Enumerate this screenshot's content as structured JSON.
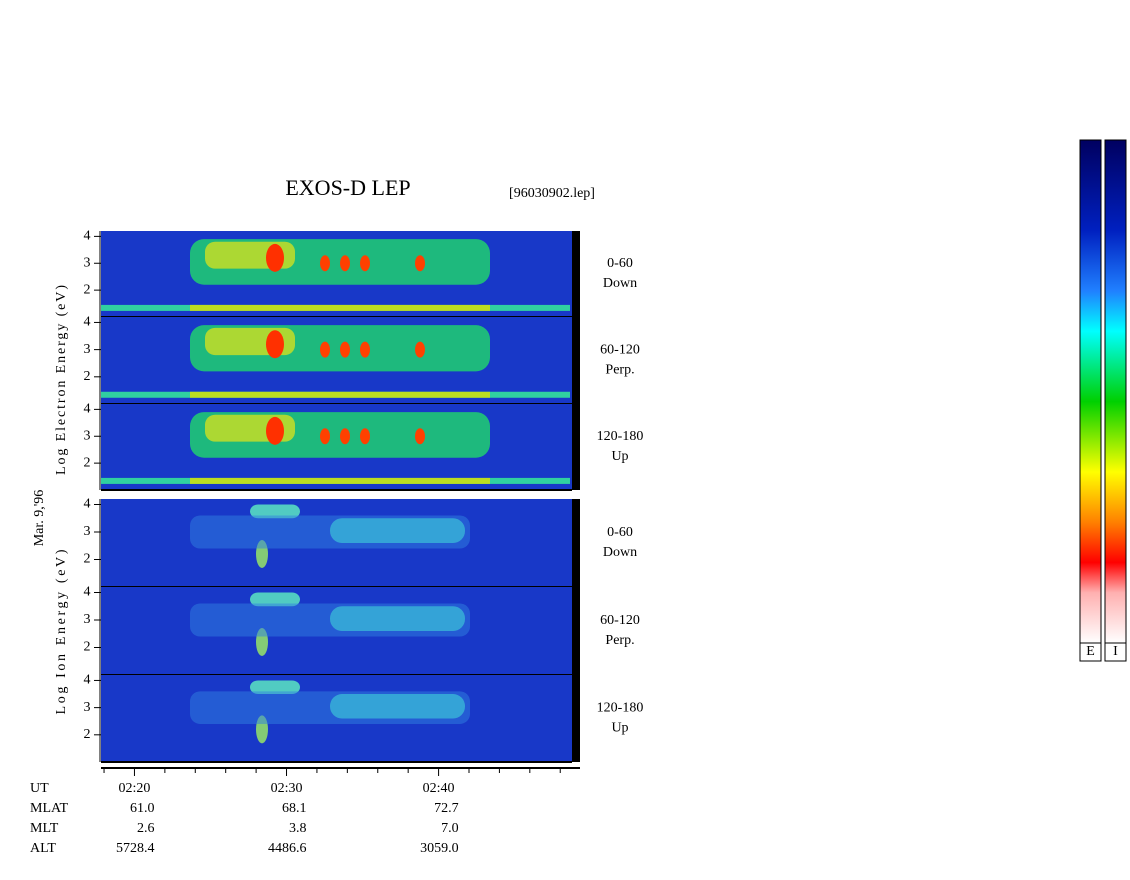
{
  "chart_data": {
    "type": "spectrogram",
    "title": "EXOS-D LEP",
    "subtitle": "[96030902.lep]",
    "date_label": "Mar. 9,'96",
    "electron_ylabel": "Log  Electron  Energy (eV)",
    "ion_ylabel": "Log  Ion  Energy (eV)",
    "ylim": [
      1,
      4.2
    ],
    "yticks": [
      2,
      3,
      4
    ],
    "xlim": [
      137.8,
      169.3
    ],
    "xticks": [
      {
        "value": 140,
        "label": "02:20"
      },
      {
        "value": 150,
        "label": "02:30"
      },
      {
        "value": 160,
        "label": "02:40"
      }
    ],
    "xticks_minor": [
      138,
      142,
      144,
      146,
      148,
      152,
      154,
      156,
      158,
      162,
      164,
      166,
      168
    ],
    "panels": [
      {
        "species": "electron",
        "label": [
          "0-60",
          "Down"
        ]
      },
      {
        "species": "electron",
        "label": [
          "60-120",
          "Perp."
        ]
      },
      {
        "species": "electron",
        "label": [
          "120-180",
          "Up"
        ]
      },
      {
        "species": "ion",
        "label": [
          "0-60",
          "Down"
        ]
      },
      {
        "species": "ion",
        "label": [
          "60-120",
          "Perp."
        ]
      },
      {
        "species": "ion",
        "label": [
          "120-180",
          "Up"
        ]
      }
    ],
    "orbit": {
      "time_label": "UT",
      "rows": [
        {
          "name": "MLAT",
          "values": [
            "61.0",
            "68.1",
            "72.7"
          ]
        },
        {
          "name": "MLT",
          "values": [
            "2.6",
            "3.8",
            "7.0"
          ]
        },
        {
          "name": "ALT",
          "values": [
            "5728.4",
            "4486.6",
            "3059.0"
          ]
        }
      ]
    },
    "colorbars": [
      "E",
      "I"
    ]
  }
}
